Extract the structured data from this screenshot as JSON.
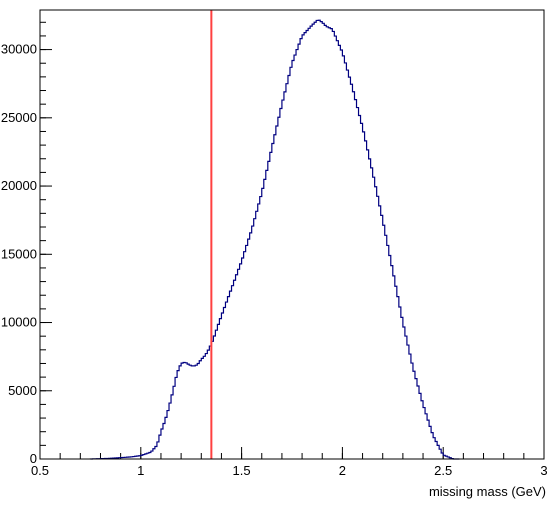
{
  "chart_data": {
    "type": "line",
    "title": "",
    "xlabel": "missing mass (GeV)",
    "ylabel": "",
    "xlim": [
      0.5,
      3.0
    ],
    "ylim": [
      0,
      32900
    ],
    "grid": false,
    "x_ticks": [
      0.5,
      1,
      1.5,
      2,
      2.5,
      3
    ],
    "x_tick_labels": [
      "0.5",
      "1",
      "1.5",
      "2",
      "2.5",
      "3"
    ],
    "y_ticks": [
      0,
      5000,
      10000,
      15000,
      20000,
      25000,
      30000
    ],
    "y_tick_labels": [
      "0",
      "5000",
      "10000",
      "15000",
      "20000",
      "25000",
      "30000"
    ],
    "series": [
      {
        "style": "histogram-step",
        "color": "#000080",
        "x": [
          0.75,
          0.85,
          0.95,
          1.0,
          1.05,
          1.08,
          1.1,
          1.12,
          1.14,
          1.16,
          1.18,
          1.2,
          1.22,
          1.24,
          1.26,
          1.28,
          1.3,
          1.32,
          1.34,
          1.36,
          1.4,
          1.45,
          1.5,
          1.55,
          1.6,
          1.65,
          1.7,
          1.75,
          1.8,
          1.85,
          1.88,
          1.9,
          1.92,
          1.95,
          2.0,
          2.05,
          2.1,
          2.15,
          2.2,
          2.25,
          2.3,
          2.35,
          2.4,
          2.45,
          2.5,
          2.55,
          2.58
        ],
        "y": [
          0,
          50,
          150,
          250,
          500,
          1000,
          2000,
          2800,
          3800,
          5000,
          6300,
          7000,
          7100,
          6900,
          6800,
          6900,
          7300,
          7600,
          8100,
          8800,
          10500,
          12500,
          14500,
          16800,
          19500,
          22800,
          26000,
          29000,
          31000,
          31800,
          32200,
          32000,
          31700,
          31500,
          29800,
          27200,
          24300,
          21000,
          17500,
          13800,
          10000,
          6700,
          4000,
          1700,
          300,
          0,
          0
        ]
      }
    ],
    "annotations": [
      {
        "type": "vertical-line",
        "x": 1.35,
        "color": "#ff4040"
      }
    ]
  }
}
